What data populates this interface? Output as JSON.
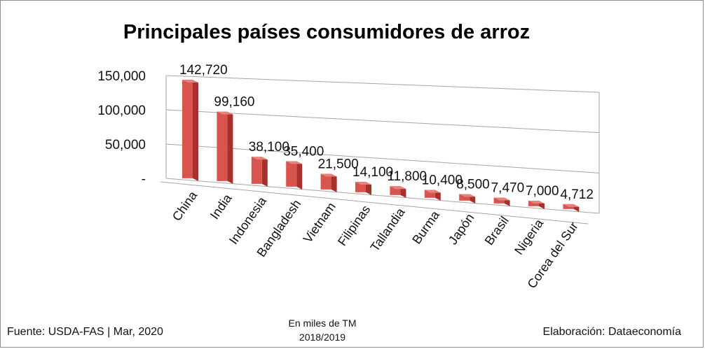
{
  "chart_data": {
    "type": "bar",
    "title": "Principales países consumidores de arroz",
    "categories": [
      "China",
      "India",
      "Indonesia",
      "Bangladesh",
      "Vietnam",
      "Filipinas",
      "Tallandia",
      "Burma",
      "Japón",
      "Brasil",
      "Nigeria",
      "Corea del Sur"
    ],
    "values": [
      142720,
      99160,
      38100,
      35400,
      21500,
      14100,
      11800,
      10400,
      8500,
      7470,
      7000,
      4712
    ],
    "value_labels": [
      "142,720",
      "99,160",
      "38,100",
      "35,400",
      "21,500",
      "14,100",
      "11,800",
      "10,400",
      "8,500",
      "7,470",
      "7,000",
      "4,712"
    ],
    "y_ticks": [
      {
        "value": 0,
        "label": "-"
      },
      {
        "value": 50000,
        "label": "50,000"
      },
      {
        "value": 100000,
        "label": "100,000"
      },
      {
        "value": 150000,
        "label": "150,000"
      }
    ],
    "ylim": [
      0,
      150000
    ],
    "grid": true,
    "legend": "none",
    "style": "3d-bar",
    "colors": {
      "bar_front": "#d9534f",
      "bar_side": "#a8302c",
      "bar_top": "#e8807c",
      "grid": "#a6a6a6"
    }
  },
  "unit_line1": "En miles de TM",
  "unit_line2": "2018/2019",
  "source": "Fuente:  USDA-FAS | Mar, 2020",
  "credit": "Elaboración: Dataeconomía"
}
